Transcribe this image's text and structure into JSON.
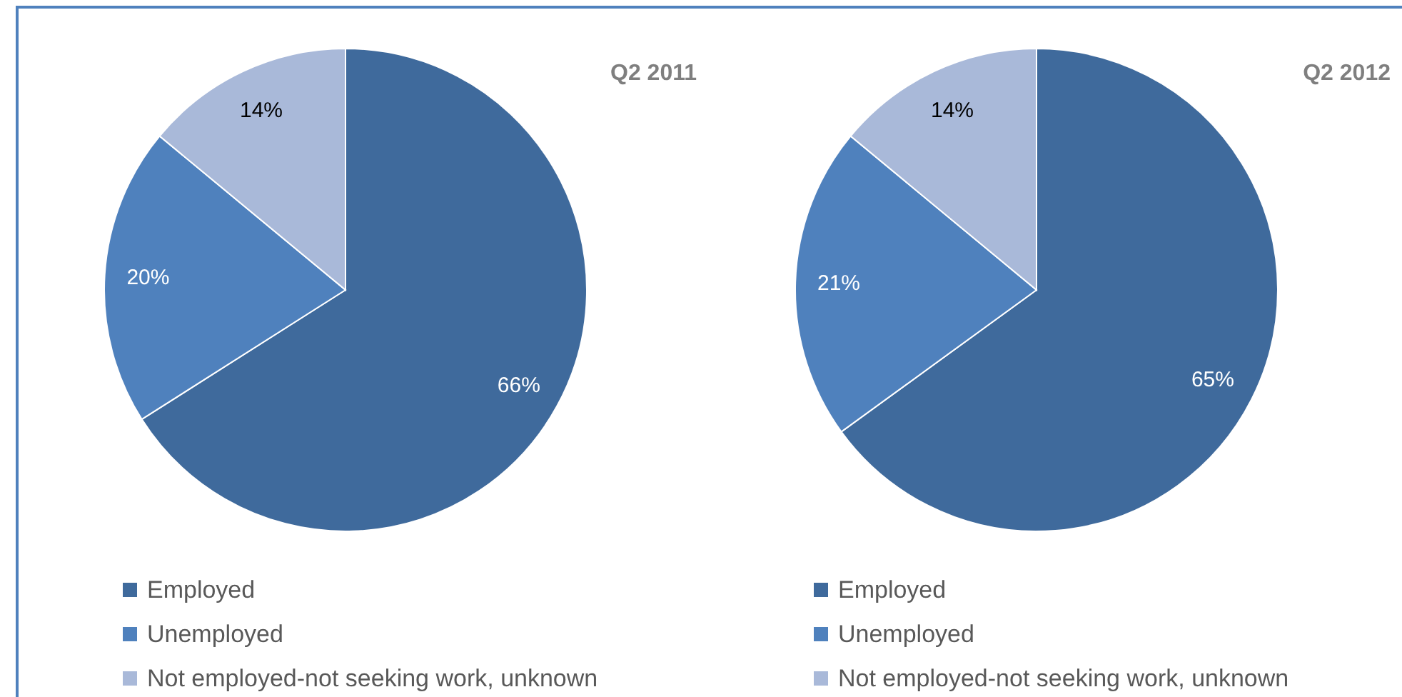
{
  "chart_data": [
    {
      "type": "pie",
      "title": "Q2 2011",
      "categories": [
        "Employed",
        "Unemployed",
        "Not employed-not seeking work, unknown"
      ],
      "values": [
        66,
        20,
        14
      ],
      "value_labels": [
        "66%",
        "20%",
        "14%"
      ],
      "colors": [
        "#3f6a9c",
        "#4f81bd",
        "#a9b9d9"
      ],
      "legend": "bottom"
    },
    {
      "type": "pie",
      "title": "Q2 2012",
      "categories": [
        "Employed",
        "Unemployed",
        "Not employed-not seeking work, unknown"
      ],
      "values": [
        65,
        21,
        14
      ],
      "value_labels": [
        "65%",
        "21%",
        "14%"
      ],
      "colors": [
        "#3f6a9c",
        "#4f81bd",
        "#a9b9d9"
      ],
      "legend": "bottom"
    }
  ]
}
